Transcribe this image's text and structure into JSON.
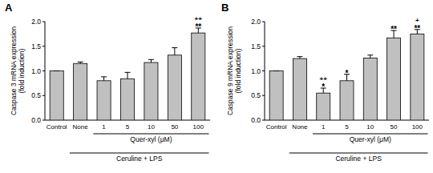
{
  "chart_data": [
    {
      "type": "bar",
      "title": "A",
      "y_label": "Caspase 3 mRNA expression\n(fold induction)",
      "categories": [
        "Control",
        "None",
        "1",
        "5",
        "10",
        "50",
        "100"
      ],
      "values": [
        1.0,
        1.15,
        0.8,
        0.84,
        1.17,
        1.32,
        1.77
      ],
      "errors": [
        0,
        0.03,
        0.08,
        0.13,
        0.06,
        0.15,
        0.1
      ],
      "significance": [
        null,
        null,
        null,
        null,
        null,
        null,
        "**"
      ],
      "significance_plus": [
        null,
        null,
        null,
        null,
        null,
        null,
        "++"
      ],
      "x_groups": [
        {
          "label": "Quer-xyl (μM)",
          "from": 2,
          "to": 6
        },
        {
          "label": "Ceruline + LPS",
          "from": 1,
          "to": 6
        }
      ],
      "color": "#c0c0c0",
      "ylim": [
        0,
        2.0
      ],
      "yticks": [
        {
          "value": 0,
          "label": "0.0"
        },
        0.5,
        {
          "value": 1,
          "label": "1.0"
        },
        1.5,
        {
          "value": 2,
          "label": "2.0"
        }
      ],
      "grid": false
    },
    {
      "type": "bar",
      "title": "B",
      "y_label": "Caspase 9 mRNA expression\n(fold induction)",
      "categories": [
        "Control",
        "None",
        "1",
        "5",
        "10",
        "50",
        "100"
      ],
      "values": [
        1.0,
        1.25,
        0.55,
        0.8,
        1.26,
        1.67,
        1.75
      ],
      "errors": [
        0,
        0.04,
        0.1,
        0.13,
        0.06,
        0.15,
        0.09
      ],
      "significance": [
        null,
        null,
        "*",
        "*",
        null,
        "**",
        "**"
      ],
      "significance_plus": [
        null,
        null,
        "++",
        null,
        null,
        null,
        "+"
      ],
      "x_groups": [
        {
          "label": "Quer-xyl (μM)",
          "from": 2,
          "to": 6
        },
        {
          "label": "Ceruline + LPS",
          "from": 1,
          "to": 6
        }
      ],
      "color": "#c0c0c0",
      "ylim": [
        0,
        2.0
      ],
      "yticks": [
        {
          "value": 0,
          "label": "0.0"
        },
        0.5,
        {
          "value": 1,
          "label": "1.0"
        },
        1.5,
        {
          "value": 2,
          "label": "2.0"
        }
      ],
      "grid": false
    }
  ]
}
